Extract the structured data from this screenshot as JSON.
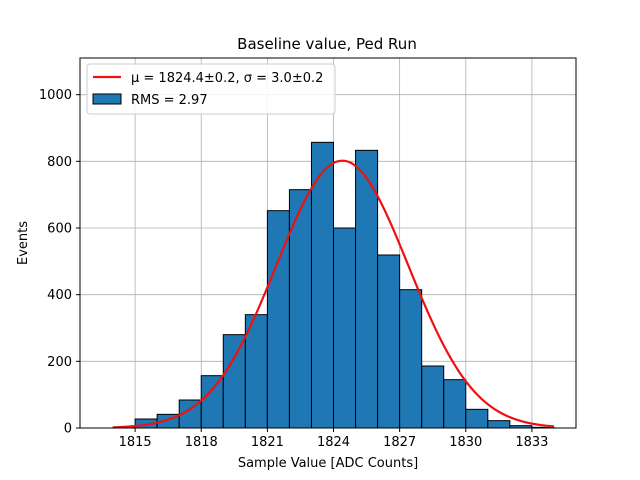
{
  "chart_data": {
    "type": "bar",
    "title": "Baseline value, Ped Run",
    "xlabel": "Sample Value [ADC Counts]",
    "ylabel": "Events",
    "xlim": [
      1812.5,
      1835.0
    ],
    "ylim": [
      0,
      1110
    ],
    "xticks": [
      1815,
      1818,
      1821,
      1824,
      1827,
      1830,
      1833
    ],
    "yticks": [
      0,
      200,
      400,
      600,
      800,
      1000
    ],
    "grid": true,
    "legend_position": "top-left",
    "histogram": {
      "name": "RMS = 2.97",
      "bin_edges": [
        1814.0,
        1815.0,
        1816.0,
        1817.0,
        1818.0,
        1819.0,
        1820.0,
        1821.0,
        1822.0,
        1823.0,
        1824.0,
        1825.0,
        1826.0,
        1827.0,
        1828.0,
        1829.0,
        1830.0,
        1831.0,
        1832.0,
        1833.0,
        1834.0
      ],
      "counts": [
        2,
        27,
        41,
        84,
        157,
        280,
        340,
        652,
        715,
        857,
        600,
        833,
        519,
        415,
        186,
        145,
        56,
        22,
        7,
        2
      ],
      "color": "#1f77b4",
      "edge_color": "#000000"
    },
    "fit": {
      "name": "μ = 1824.4±0.2, σ = 3.0±0.2",
      "function": "gaussian",
      "mu": 1824.4,
      "sigma": 3.0,
      "amplitude": 802,
      "x_range": [
        1814.0,
        1834.0
      ],
      "color": "#ee1111"
    }
  }
}
